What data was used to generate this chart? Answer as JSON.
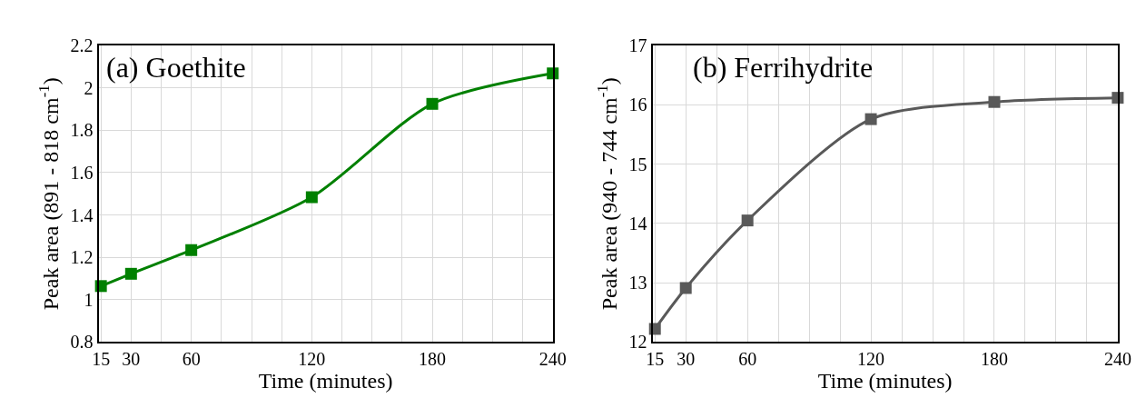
{
  "chart_data": [
    {
      "type": "line",
      "xlabel": "Time (minutes)",
      "ylabel": "Peak area (891 - 818 cm$^{-1}$)",
      "annotations": [
        "(a) Goethite"
      ],
      "x": [
        15,
        30,
        60,
        120,
        180,
        240
      ],
      "series": [
        {
          "color": "#008000",
          "values": [
            1.064,
            1.122,
            1.234,
            1.484,
            1.925,
            2.069
          ]
        }
      ],
      "xlim": [
        13.8,
        240
      ],
      "xticks": [
        15,
        30,
        {
          "value": 45,
          "label": null
        },
        60,
        {
          "value": 75,
          "label": null
        },
        {
          "value": 90,
          "label": null
        },
        {
          "value": 105,
          "label": null
        },
        120,
        {
          "value": 135,
          "label": null
        },
        {
          "value": 150,
          "label": null
        },
        {
          "value": 165,
          "label": null
        },
        180,
        {
          "value": 195,
          "label": null
        },
        {
          "value": 210,
          "label": null
        },
        {
          "value": 225,
          "label": null
        },
        240
      ],
      "ylim": [
        0.8,
        2.2
      ],
      "yticks": [
        0.8,
        1,
        1.2,
        1.4,
        1.6,
        1.8,
        2,
        2.2
      ],
      "grid": true,
      "marker": "square",
      "line_style": "solid"
    },
    {
      "type": "line",
      "xlabel": "Time (minutes)",
      "ylabel": "Peak area (940 - 744 cm$^{-1}$)",
      "annotations": [
        "(b) Ferrihydrite"
      ],
      "x": [
        15,
        30,
        60,
        120,
        180,
        240
      ],
      "series": [
        {
          "color": "#595959",
          "values": [
            12.22,
            12.91,
            14.05,
            15.76,
            16.05,
            16.12
          ]
        }
      ],
      "xlim": [
        13.8,
        240
      ],
      "xticks": [
        15,
        30,
        {
          "value": 45,
          "label": null
        },
        60,
        {
          "value": 75,
          "label": null
        },
        {
          "value": 90,
          "label": null
        },
        {
          "value": 105,
          "label": null
        },
        120,
        {
          "value": 135,
          "label": null
        },
        {
          "value": 150,
          "label": null
        },
        {
          "value": 165,
          "label": null
        },
        180,
        {
          "value": 195,
          "label": null
        },
        {
          "value": 210,
          "label": null
        },
        {
          "value": 225,
          "label": null
        },
        240
      ],
      "ylim": [
        12,
        17
      ],
      "yticks": [
        12,
        13,
        14,
        15,
        16,
        17
      ],
      "grid": true,
      "marker": "square",
      "line_style": "solid"
    }
  ]
}
